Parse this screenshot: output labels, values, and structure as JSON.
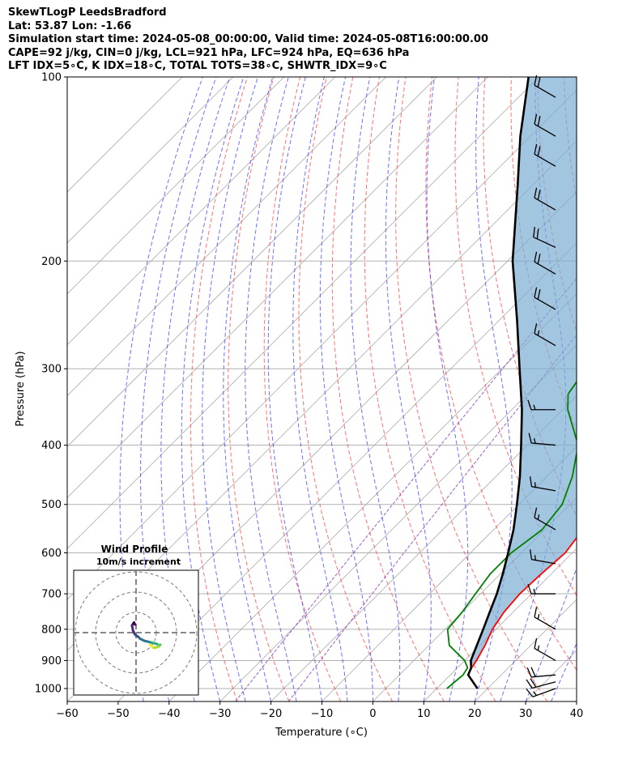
{
  "header": {
    "line1": "SkewTLogP LeedsBradford",
    "line2": "Lat: 53.87   Lon: -1.66",
    "line3": "Simulation start time: 2024-05-08_00:00:00, Valid time: 2024-05-08T16:00:00.00",
    "line4": "CAPE=92 j/kg, CIN=0 j/kg, LCL=921 hPa, LFC=924 hPa, EQ=636 hPa",
    "line5": "LFT IDX=5∘C, K IDX=18∘C, TOTAL TOTS=38∘C, SHWTR_IDX=9∘C"
  },
  "chart_data": {
    "type": "skewt-logp",
    "xlabel": "Temperature (∘C)",
    "ylabel": "Pressure (hPa)",
    "xlim": [
      -60,
      40
    ],
    "ylim": [
      1050,
      100
    ],
    "x_ticks": [
      "−60",
      "−50",
      "−40",
      "−30",
      "−20",
      "−10",
      "0",
      "10",
      "20",
      "30",
      "40"
    ],
    "y_ticks": [
      "100",
      "200",
      "300",
      "400",
      "500",
      "600",
      "700",
      "800",
      "900",
      "1000"
    ],
    "grid": true,
    "temperature": {
      "color": "#ff0000",
      "p": [
        1000,
        950,
        925,
        900,
        850,
        800,
        750,
        700,
        650,
        600,
        550,
        500,
        450,
        400,
        350,
        300,
        250,
        220,
        210,
        200,
        185,
        170,
        150,
        140,
        130,
        120,
        110,
        100
      ],
      "t": [
        18,
        13.5,
        12.8,
        12.3,
        11,
        9.3,
        8.2,
        7.7,
        8,
        8.6,
        7.5,
        4,
        -0.5,
        -6,
        -12,
        -20,
        -30,
        -38,
        -43,
        -45,
        -47,
        -52,
        -56,
        -58,
        -58.5,
        -60,
        -62,
        -65
      ]
    },
    "dewpoint": {
      "color": "#008000",
      "p": [
        1000,
        950,
        925,
        900,
        850,
        800,
        750,
        700,
        650,
        600,
        550,
        500,
        450,
        400,
        350,
        330,
        300,
        270,
        250,
        220,
        205,
        200,
        185,
        170,
        150,
        135,
        120,
        110,
        100
      ],
      "t": [
        12,
        12.5,
        12,
        10,
        4,
        0.5,
        0,
        -1,
        -2,
        -2,
        -0.5,
        -1.5,
        -5,
        -10,
        -19,
        -22,
        -23.5,
        -26.5,
        -29.5,
        -36,
        -40,
        -41,
        -44,
        -46,
        -52,
        -58,
        -62,
        -66,
        -70
      ]
    },
    "parcel": {
      "color": "#000000",
      "p": [
        1000,
        950,
        925,
        900,
        850,
        800,
        750,
        700,
        650,
        600,
        550,
        500,
        450,
        400,
        350,
        300,
        250,
        200,
        150,
        125,
        100
      ],
      "t": [
        18,
        13.5,
        12.7,
        11.2,
        9.4,
        7.5,
        5.4,
        3.2,
        0.5,
        -2.6,
        -6.1,
        -10.4,
        -15.3,
        -21.2,
        -28,
        -36.5,
        -46.5,
        -59,
        -73,
        -82,
        -92
      ]
    },
    "wind_barbs": [
      {
        "p": 1000,
        "speed_kt": 15,
        "dir_deg": 250
      },
      {
        "p": 975,
        "speed_kt": 20,
        "dir_deg": 255
      },
      {
        "p": 950,
        "speed_kt": 20,
        "dir_deg": 265
      },
      {
        "p": 900,
        "speed_kt": 15,
        "dir_deg": 300
      },
      {
        "p": 800,
        "speed_kt": 15,
        "dir_deg": 300
      },
      {
        "p": 700,
        "speed_kt": 15,
        "dir_deg": 270
      },
      {
        "p": 625,
        "speed_kt": 15,
        "dir_deg": 280
      },
      {
        "p": 550,
        "speed_kt": 15,
        "dir_deg": 300
      },
      {
        "p": 475,
        "speed_kt": 15,
        "dir_deg": 280
      },
      {
        "p": 400,
        "speed_kt": 15,
        "dir_deg": 275
      },
      {
        "p": 350,
        "speed_kt": 15,
        "dir_deg": 270
      },
      {
        "p": 275,
        "speed_kt": 15,
        "dir_deg": 300
      },
      {
        "p": 240,
        "speed_kt": 20,
        "dir_deg": 300
      },
      {
        "p": 210,
        "speed_kt": 20,
        "dir_deg": 300
      },
      {
        "p": 190,
        "speed_kt": 20,
        "dir_deg": 295
      },
      {
        "p": 165,
        "speed_kt": 20,
        "dir_deg": 300
      },
      {
        "p": 140,
        "speed_kt": 20,
        "dir_deg": 300
      },
      {
        "p": 125,
        "speed_kt": 20,
        "dir_deg": 300
      },
      {
        "p": 108,
        "speed_kt": 20,
        "dir_deg": 300
      }
    ],
    "hodograph": {
      "title": "Wind Profile",
      "subtitle": "10m/s increment",
      "rings_ms": [
        10,
        20,
        30
      ],
      "u": [
        -0.5,
        -1,
        -2,
        -1.5,
        -0.5,
        1,
        2,
        4,
        6,
        8,
        10,
        11,
        12,
        11,
        9,
        8,
        7
      ],
      "v": [
        4,
        5,
        3.5,
        1,
        -1,
        -2,
        -3,
        -4,
        -4.5,
        -5,
        -5.5,
        -6,
        -6,
        -7,
        -7.5,
        -7,
        -6
      ]
    }
  }
}
